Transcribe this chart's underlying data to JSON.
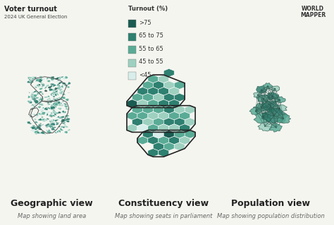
{
  "title": "Voter turnout",
  "subtitle": "2024 UK General Election",
  "background_color": "#f5f5f0",
  "legend_title": "Turnout (%)",
  "legend_items": [
    {
      "label": ">75",
      "color": "#1a5c52"
    },
    {
      "label": "65 to 75",
      "color": "#2e8070"
    },
    {
      "label": "55 to 65",
      "color": "#5aab96"
    },
    {
      "label": "45 to 55",
      "color": "#9ed0c0"
    },
    {
      "label": "<45",
      "color": "#d8eeea"
    }
  ],
  "panels": [
    {
      "title": "Geographic view",
      "subtitle": "Map showing land area"
    },
    {
      "title": "Constituency view",
      "subtitle": "Map showing seats in parliament"
    },
    {
      "title": "Population view",
      "subtitle": "Map showing population distribution"
    }
  ],
  "worldmapper_text": "WORLD\nMAPPER",
  "map_colors": [
    "#1a5c52",
    "#2e8070",
    "#5aab96",
    "#9ed0c0",
    "#d8eeea"
  ],
  "color_probs": [
    0.05,
    0.35,
    0.35,
    0.2,
    0.05
  ],
  "title_fontsize": 7,
  "subtitle_fontsize": 5,
  "panel_title_fontsize": 9,
  "panel_subtitle_fontsize": 6,
  "legend_fontsize": 6
}
